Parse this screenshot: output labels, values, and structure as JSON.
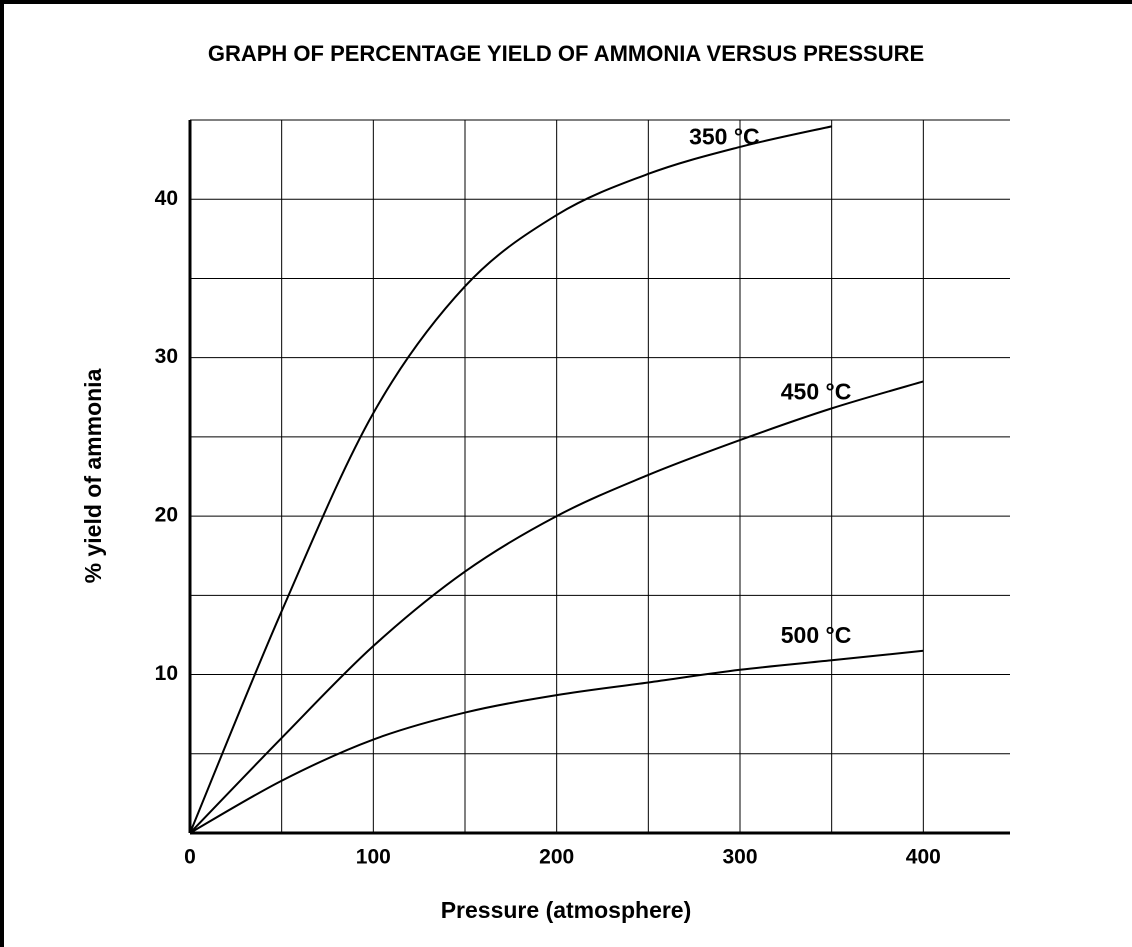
{
  "chart_data": {
    "type": "line",
    "title": "GRAPH OF PERCENTAGE YIELD OF AMMONIA VERSUS PRESSURE",
    "xlabel": "Pressure (atmosphere)",
    "ylabel": "% yield of ammonia",
    "xlim": [
      0,
      450
    ],
    "ylim": [
      0,
      45
    ],
    "xticks": [
      0,
      100,
      200,
      300,
      400
    ],
    "xminor": [
      50,
      150,
      250,
      350,
      450
    ],
    "yticks": [
      10,
      20,
      30,
      40
    ],
    "yminor": [
      5,
      15,
      25,
      35,
      45
    ],
    "grid": true,
    "series": [
      {
        "name": "350 °C",
        "color": "#000000",
        "x": [
          0,
          50,
          100,
          150,
          200,
          250,
          300,
          350
        ],
        "values": [
          0,
          14,
          26.5,
          34.5,
          39,
          41.6,
          43.3,
          44.6
        ]
      },
      {
        "name": "450 °C",
        "color": "#000000",
        "x": [
          0,
          50,
          100,
          150,
          200,
          250,
          300,
          350,
          400
        ],
        "values": [
          0,
          6,
          11.8,
          16.5,
          20,
          22.6,
          24.8,
          26.8,
          28.5
        ]
      },
      {
        "name": "500 °C",
        "color": "#000000",
        "x": [
          0,
          50,
          100,
          150,
          200,
          250,
          300,
          350,
          400
        ],
        "values": [
          0,
          3.3,
          5.9,
          7.6,
          8.7,
          9.5,
          10.3,
          10.9,
          11.5
        ]
      }
    ]
  }
}
